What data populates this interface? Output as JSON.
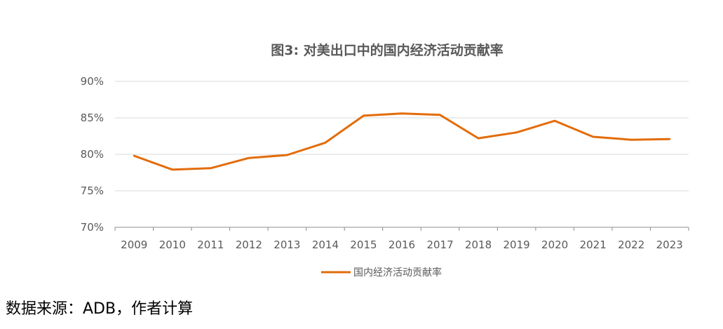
{
  "chart_data": {
    "type": "line",
    "title": "图3: 对美出口中的国内经济活动贡献率",
    "xlabel": "",
    "ylabel": "",
    "categories": [
      "2009",
      "2010",
      "2011",
      "2012",
      "2013",
      "2014",
      "2015",
      "2016",
      "2017",
      "2018",
      "2019",
      "2020",
      "2021",
      "2022",
      "2023"
    ],
    "series": [
      {
        "name": "国内经济活动贡献率",
        "color": "#E36C0A",
        "values": [
          79.8,
          77.9,
          78.1,
          79.5,
          79.9,
          81.6,
          85.3,
          85.6,
          85.4,
          82.2,
          83.0,
          84.6,
          82.4,
          82.0,
          82.1
        ]
      }
    ],
    "ylim": [
      70,
      90
    ],
    "yticks": [
      70,
      75,
      80,
      85,
      90
    ],
    "ytick_labels": [
      "70%",
      "75%",
      "80%",
      "85%",
      "90%"
    ],
    "grid": true,
    "legend_position": "bottom"
  },
  "source_note": "数据来源：ADB，作者计算"
}
